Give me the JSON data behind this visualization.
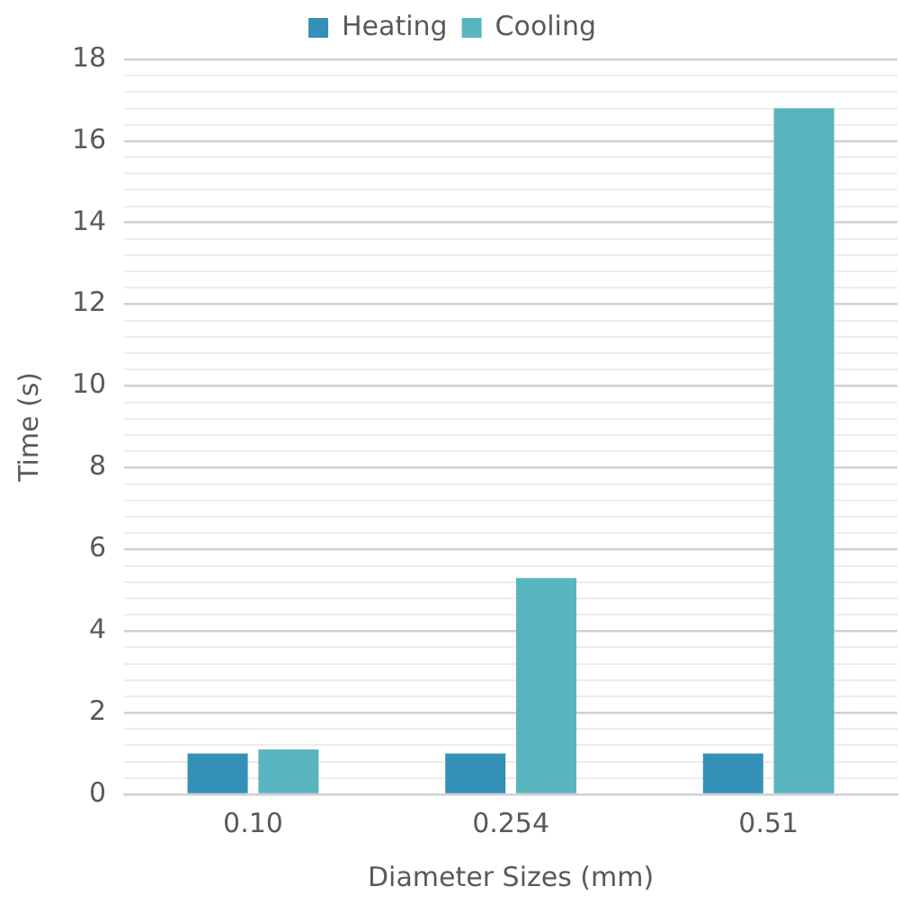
{
  "chart_data": {
    "type": "bar",
    "xlabel": "Diameter Sizes (mm)",
    "ylabel": "Time (s)",
    "categories": [
      "0.10",
      "0.254",
      "0.51"
    ],
    "series": [
      {
        "name": "Heating",
        "color": "#3590b8",
        "values": [
          1.0,
          1.0,
          1.0
        ]
      },
      {
        "name": "Cooling",
        "color": "#58b4bf",
        "values": [
          1.1,
          5.3,
          16.8
        ]
      }
    ],
    "ylim": [
      0,
      18
    ],
    "yticks": [
      0,
      {
        "value": 0.4,
        "label": null
      },
      {
        "value": 0.8,
        "label": null
      },
      {
        "value": 1.2,
        "label": null
      },
      {
        "value": 1.6,
        "label": null
      },
      2,
      {
        "value": 2.4,
        "label": null
      },
      {
        "value": 2.8,
        "label": null
      },
      {
        "value": 3.2,
        "label": null
      },
      {
        "value": 3.6,
        "label": null
      },
      4,
      {
        "value": 4.4,
        "label": null
      },
      {
        "value": 4.8,
        "label": null
      },
      {
        "value": 5.2,
        "label": null
      },
      {
        "value": 5.6,
        "label": null
      },
      6,
      {
        "value": 6.4,
        "label": null
      },
      {
        "value": 6.8,
        "label": null
      },
      {
        "value": 7.2,
        "label": null
      },
      {
        "value": 7.6,
        "label": null
      },
      8,
      {
        "value": 8.4,
        "label": null
      },
      {
        "value": 8.8,
        "label": null
      },
      {
        "value": 9.2,
        "label": null
      },
      {
        "value": 9.6,
        "label": null
      },
      10,
      {
        "value": 10.4,
        "label": null
      },
      {
        "value": 10.8,
        "label": null
      },
      {
        "value": 11.2,
        "label": null
      },
      {
        "value": 11.6,
        "label": null
      },
      12,
      {
        "value": 12.4,
        "label": null
      },
      {
        "value": 12.8,
        "label": null
      },
      {
        "value": 13.2,
        "label": null
      },
      {
        "value": 13.6,
        "label": null
      },
      14,
      {
        "value": 14.4,
        "label": null
      },
      {
        "value": 14.8,
        "label": null
      },
      {
        "value": 15.2,
        "label": null
      },
      {
        "value": 15.6,
        "label": null
      },
      16,
      {
        "value": 16.4,
        "label": null
      },
      {
        "value": 16.8,
        "label": null
      },
      {
        "value": 17.2,
        "label": null
      },
      {
        "value": 17.6,
        "label": null
      },
      18
    ],
    "grid": "y",
    "legend": "top"
  }
}
